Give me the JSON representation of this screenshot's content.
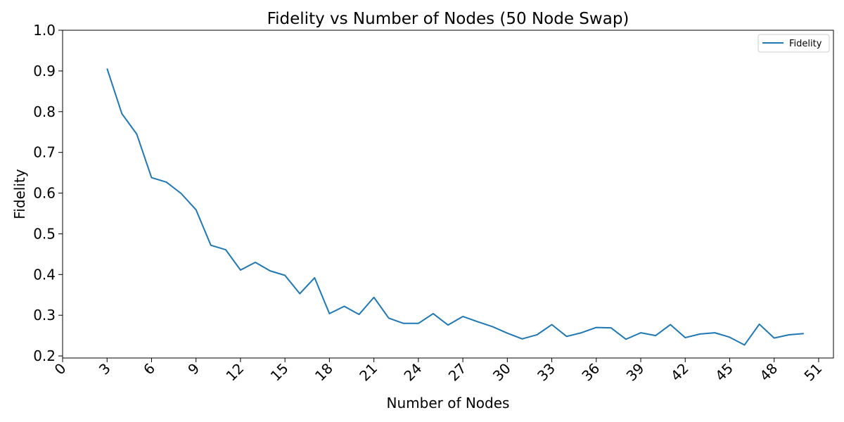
{
  "chart_data": {
    "type": "line",
    "title": "Fidelity vs Number of Nodes (50 Node Swap)",
    "xlabel": "Number of Nodes",
    "ylabel": "Fidelity",
    "xlim": [
      0,
      52
    ],
    "ylim": [
      0.195,
      1.0
    ],
    "xticks": [
      0,
      3,
      6,
      9,
      12,
      15,
      18,
      21,
      24,
      27,
      30,
      33,
      36,
      39,
      42,
      45,
      48,
      51
    ],
    "yticks": [
      0.2,
      0.3,
      0.4,
      0.5,
      0.6,
      0.7,
      0.8,
      0.9,
      1.0
    ],
    "xtick_rotation": 45,
    "grid": false,
    "legend_position": "top-right",
    "series": [
      {
        "name": "Fidelity",
        "color": "#1f77b4",
        "x": [
          3,
          4,
          5,
          6,
          7,
          8,
          9,
          10,
          11,
          12,
          13,
          14,
          15,
          16,
          17,
          18,
          19,
          20,
          21,
          22,
          23,
          24,
          25,
          26,
          27,
          28,
          29,
          30,
          31,
          32,
          33,
          34,
          35,
          36,
          37,
          38,
          39,
          40,
          41,
          42,
          43,
          44,
          45,
          46,
          47,
          48,
          49,
          50
        ],
        "values": [
          0.906,
          0.795,
          0.745,
          0.638,
          0.627,
          0.599,
          0.559,
          0.472,
          0.461,
          0.411,
          0.43,
          0.409,
          0.398,
          0.353,
          0.392,
          0.304,
          0.322,
          0.302,
          0.344,
          0.293,
          0.28,
          0.28,
          0.304,
          0.276,
          0.297,
          0.284,
          0.272,
          0.256,
          0.242,
          0.252,
          0.277,
          0.248,
          0.257,
          0.27,
          0.269,
          0.241,
          0.257,
          0.25,
          0.277,
          0.245,
          0.254,
          0.257,
          0.246,
          0.227,
          0.278,
          0.244,
          0.252,
          0.255
        ]
      }
    ]
  }
}
